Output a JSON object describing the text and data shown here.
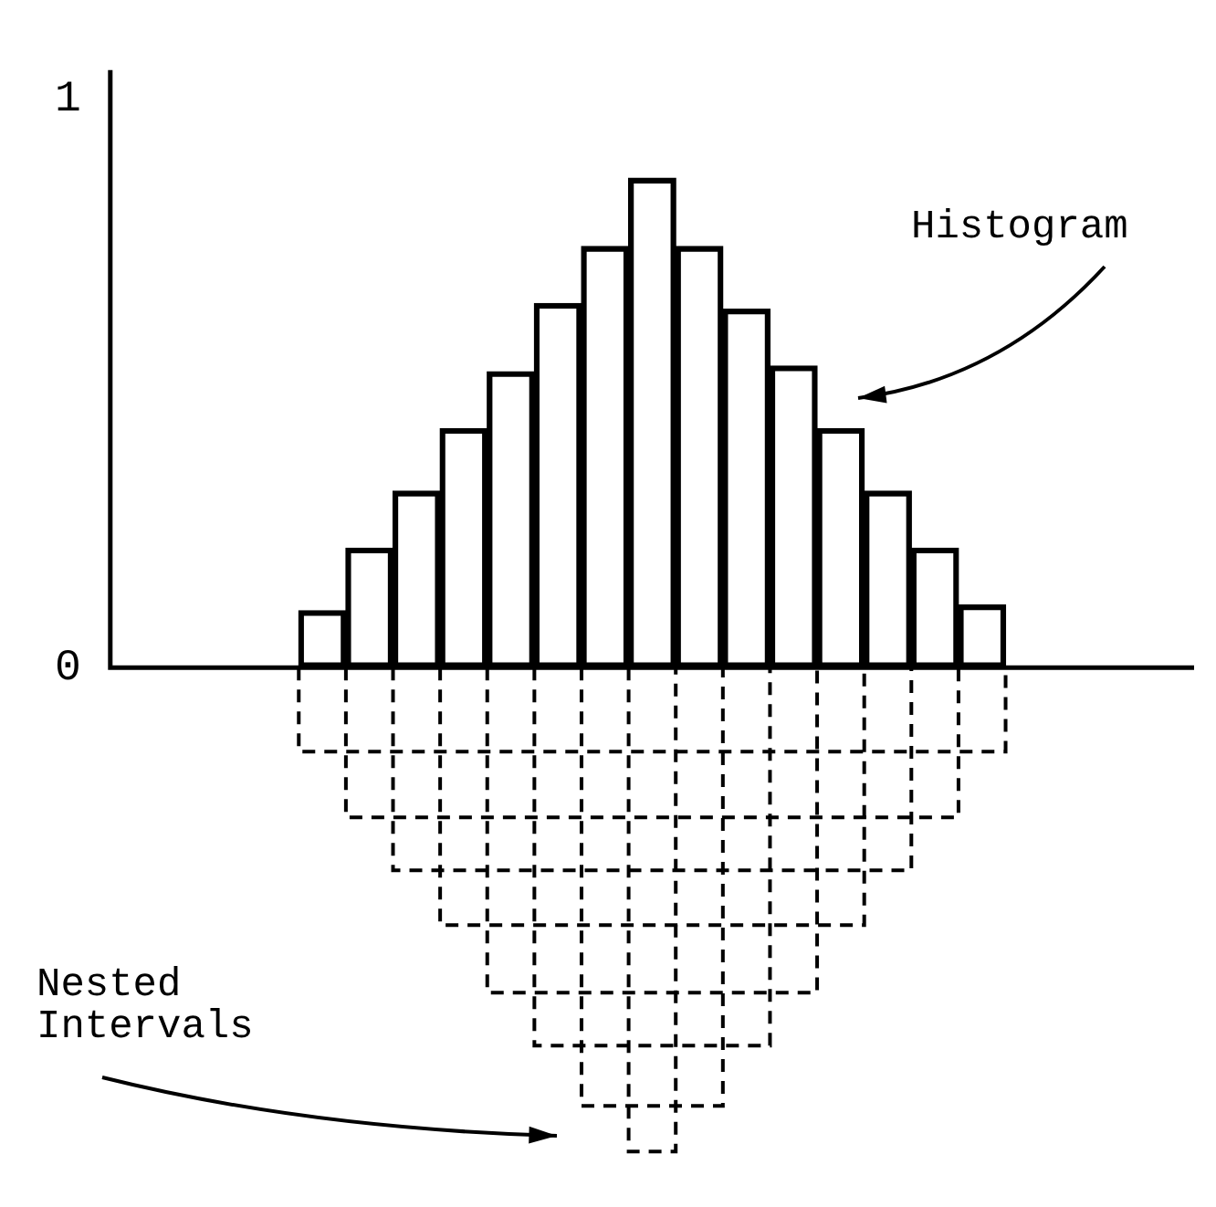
{
  "chart_data": {
    "type": "bar",
    "categories": [
      null,
      null,
      null,
      null,
      null,
      null,
      null,
      null,
      null,
      null,
      null,
      null,
      null,
      null,
      null,
      null,
      null,
      null,
      null,
      null,
      null,
      null,
      null
    ],
    "ylim": [
      0,
      1.05
    ],
    "yticks": [
      0,
      1
    ],
    "tick_labels": "y",
    "grid": false,
    "legend": false,
    "series": [
      {
        "color": "#000000",
        "values": [
          null,
          null,
          null,
          null,
          0.1,
          0.21,
          0.31,
          0.42,
          0.52,
          0.64,
          0.74,
          0.86,
          0.74,
          0.63,
          0.53,
          0.42,
          0.31,
          0.21,
          0.11,
          null,
          null,
          null,
          null
        ]
      }
    ],
    "annotations": [
      "Histogram",
      "Nested\nIntervals"
    ]
  }
}
